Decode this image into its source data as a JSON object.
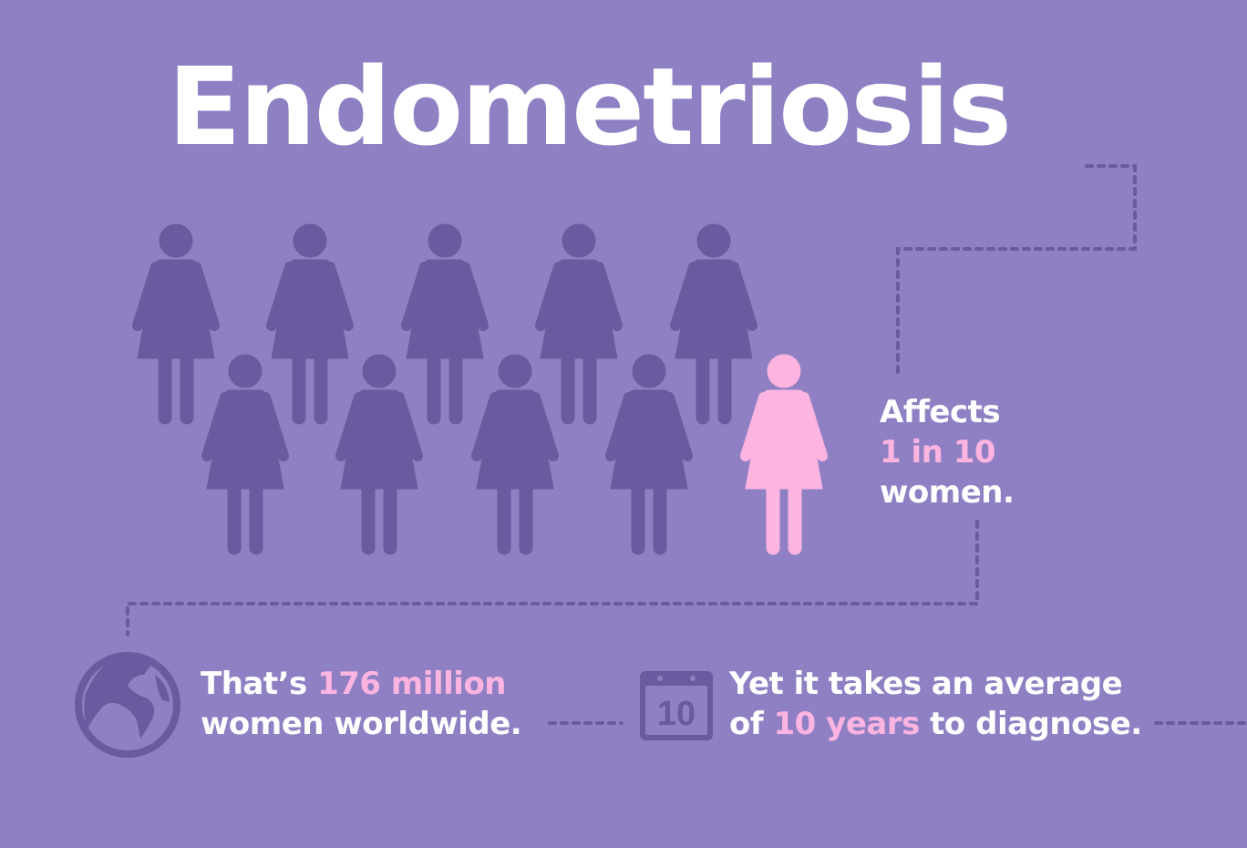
{
  "title": "Endometriosis",
  "colors": {
    "background": "#8e80c3",
    "figure": "#6a5aa0",
    "highlight": "#fdb4e0",
    "text": "#ffffff"
  },
  "figures": {
    "total": 10,
    "highlighted": 1
  },
  "affects": {
    "line1": "Affects",
    "line2": "1 in 10",
    "line3": "women."
  },
  "worldwide": {
    "icon": "globe-icon",
    "prefix": "That’s ",
    "highlight": "176 million",
    "line2": "women worldwide."
  },
  "diagnosis": {
    "icon": "calendar-icon",
    "calendar_number": "10",
    "line1": "Yet it takes an average",
    "line2_prefix": "of ",
    "highlight": "10 years",
    "line2_suffix": " to diagnose."
  }
}
